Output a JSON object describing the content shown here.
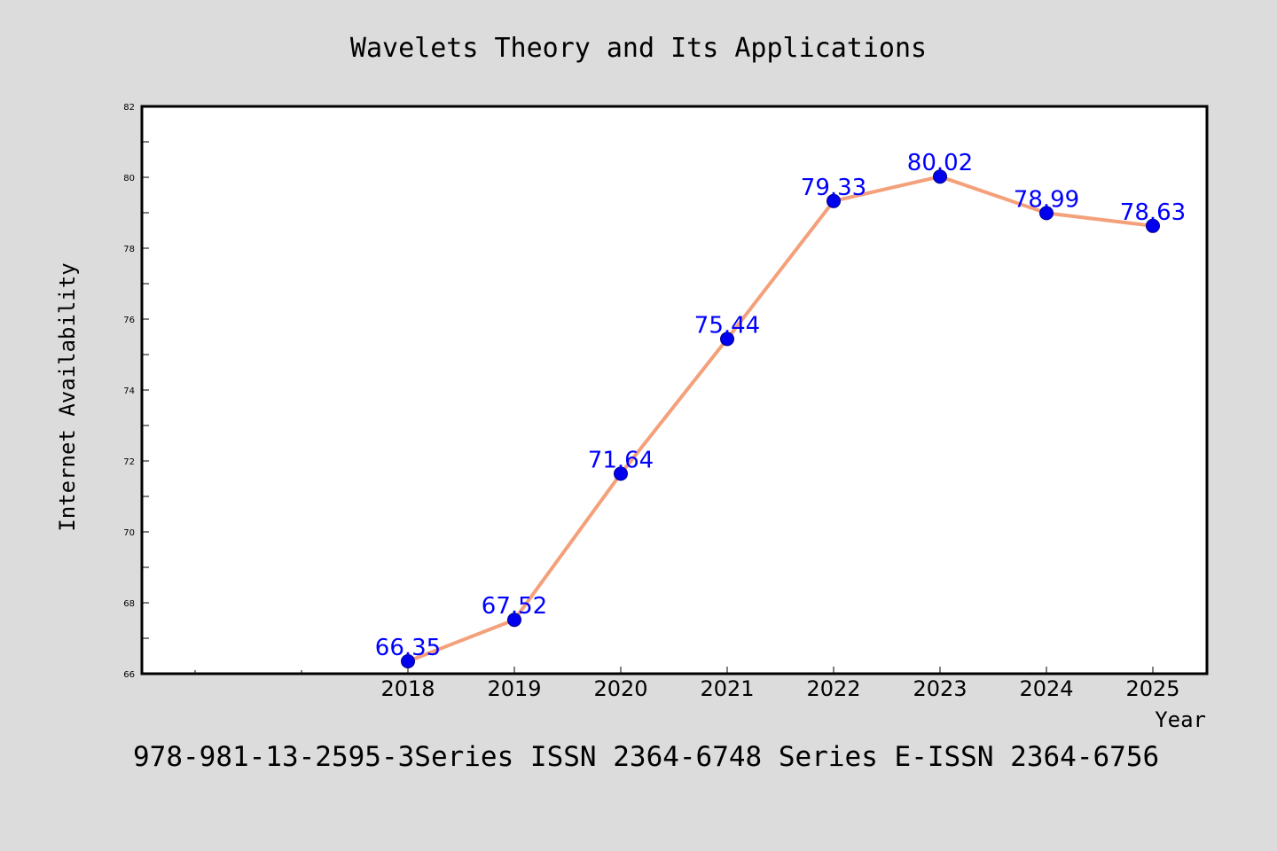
{
  "chart_data": {
    "type": "line",
    "title": "Wavelets Theory and Its Applications",
    "xlabel": "Year",
    "ylabel": "Internet Availability",
    "categories": [
      "2018",
      "2019",
      "2020",
      "2021",
      "2022",
      "2023",
      "2024",
      "2025"
    ],
    "series": [
      {
        "values": [
          66.35,
          67.52,
          71.64,
          75.44,
          79.33,
          80.02,
          78.99,
          78.63
        ],
        "labels": [
          "66.35",
          "67.52",
          "71.64",
          "75.44",
          "79.33",
          "80.02",
          "78.99",
          "78.63"
        ],
        "line_color": "#f4a07a",
        "marker_color": "#0000ee",
        "label_color": "#0000ff"
      }
    ],
    "ylim": [
      66,
      82
    ],
    "yticks": [
      "66",
      "68",
      "70",
      "72",
      "74",
      "76",
      "78",
      "80",
      "82"
    ],
    "grid": false,
    "legend": "none"
  },
  "footer_text": "978-981-13-2595-3Series ISSN 2364-6748 Series E-ISSN 2364-6756"
}
